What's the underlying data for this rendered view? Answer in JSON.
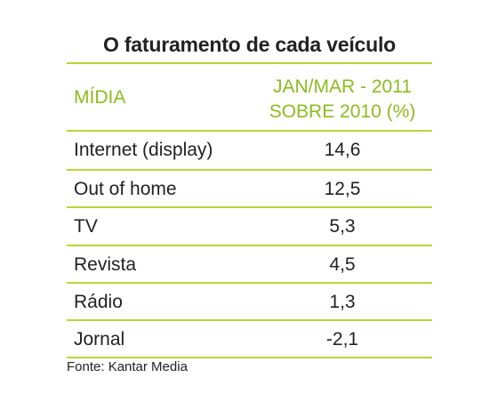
{
  "chart_data": {
    "type": "table",
    "title": "O faturamento de cada veículo",
    "columns": [
      "MÍDIA",
      "JAN/MAR - 2011",
      "SOBRE 2010 (%)"
    ],
    "rows": [
      {
        "media": "Internet (display)",
        "value": "14,6"
      },
      {
        "media": "Out of home",
        "value": "12,5"
      },
      {
        "media": "TV",
        "value": "5,3"
      },
      {
        "media": "Revista",
        "value": "4,5"
      },
      {
        "media": "Rádio",
        "value": "1,3"
      },
      {
        "media": "Jornal",
        "value": "-2,1"
      }
    ],
    "source": "Fonte: Kantar Media"
  },
  "colors": {
    "accent": "#8dbb1f",
    "rule": "#b9d53a",
    "text": "#222222"
  }
}
